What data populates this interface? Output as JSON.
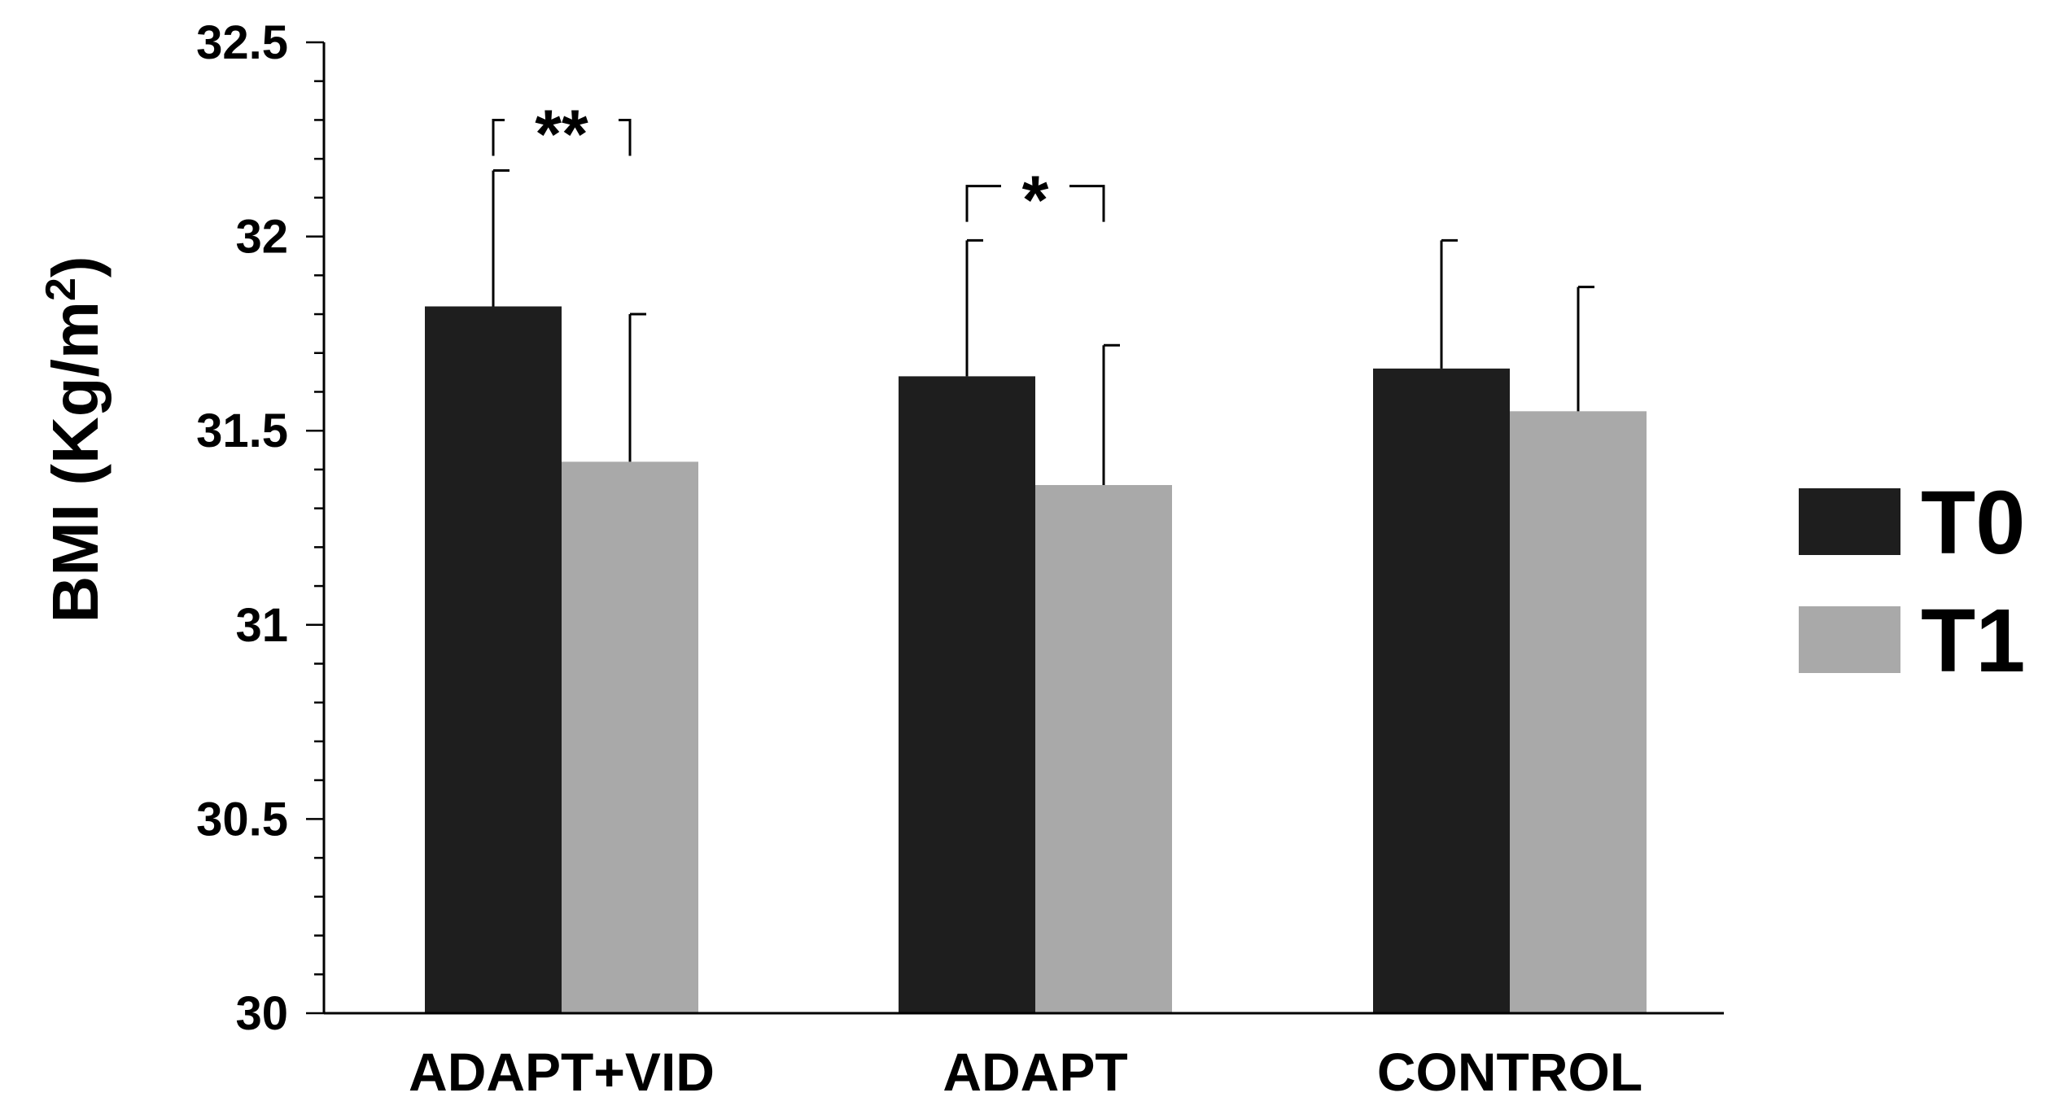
{
  "chart_data": {
    "type": "bar",
    "title": "",
    "xlabel": "",
    "ylabel": "BMI (Kg/m",
    "ylabel_superscript": "2",
    "ylabel_close": ")",
    "ylim": [
      30,
      32.5
    ],
    "y_ticks": [
      "30",
      "30.5",
      "31",
      "31.5",
      "32",
      "32.5"
    ],
    "y_tick_values": [
      30,
      30.5,
      31,
      31.5,
      32,
      32.5
    ],
    "y_minor_step": 0.1,
    "categories": [
      "ADAPT+VID",
      "ADAPT",
      "CONTROL"
    ],
    "series": [
      {
        "name": "T0",
        "color": "#1e1e1e",
        "values": [
          31.82,
          31.64,
          31.66
        ],
        "errors": [
          0.35,
          0.35,
          0.33
        ]
      },
      {
        "name": "T1",
        "color": "#a9a9a9",
        "values": [
          31.42,
          31.36,
          31.55
        ],
        "errors": [
          0.38,
          0.36,
          0.32
        ]
      }
    ],
    "legend_position": "right",
    "annotations": [
      {
        "category": "ADAPT+VID",
        "label": "**",
        "bracket_y": 32.3
      },
      {
        "category": "ADAPT",
        "label": "*",
        "bracket_y": 32.13
      }
    ]
  }
}
